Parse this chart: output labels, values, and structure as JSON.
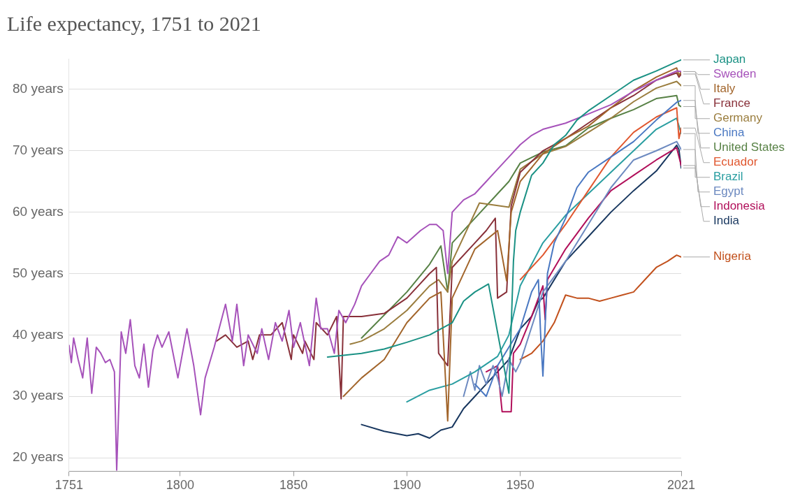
{
  "chart_data": {
    "type": "line",
    "title": "Life expectancy, 1751 to 2021",
    "xlim": [
      1751,
      2021
    ],
    "ylim": [
      17.8,
      85
    ],
    "xticks": [
      1751,
      1800,
      1850,
      1900,
      1950,
      2021
    ],
    "yticks": [
      {
        "value": 20,
        "label": "20 years"
      },
      {
        "value": 30,
        "label": "30 years"
      },
      {
        "value": 40,
        "label": "40 years"
      },
      {
        "value": 50,
        "label": "50 years"
      },
      {
        "value": 60,
        "label": "60 years"
      },
      {
        "value": 70,
        "label": "70 years"
      },
      {
        "value": 80,
        "label": "80 years"
      }
    ],
    "grid": "y",
    "legend": "right",
    "marker": "none",
    "line_style": "solid",
    "series": [
      {
        "name": "Japan",
        "color": "#1a9184",
        "x": [
          1865,
          1880,
          1890,
          1900,
          1910,
          1915,
          1920,
          1925,
          1930,
          1936,
          1945,
          1947,
          1948,
          1950,
          1955,
          1960,
          1965,
          1970,
          1975,
          1980,
          1990,
          2000,
          2010,
          2019,
          2021
        ],
        "values": [
          36.4,
          37,
          37.7,
          38.8,
          40,
          41,
          42,
          45.5,
          47,
          48.3,
          30.5,
          52,
          57,
          60,
          66,
          68,
          71,
          72.5,
          75,
          76.5,
          79,
          81.5,
          83,
          84.5,
          84.8
        ]
      },
      {
        "name": "Sweden",
        "color": "#a652ba",
        "x": [
          1751,
          1752,
          1753,
          1755,
          1757,
          1759,
          1761,
          1763,
          1765,
          1767,
          1769,
          1771,
          1772,
          1774,
          1776,
          1778,
          1780,
          1782,
          1784,
          1786,
          1788,
          1790,
          1792,
          1795,
          1799,
          1803,
          1806,
          1809,
          1811,
          1815,
          1820,
          1823,
          1825,
          1828,
          1830,
          1834,
          1836,
          1839,
          1842,
          1845,
          1848,
          1850,
          1853,
          1857,
          1860,
          1862,
          1865,
          1868,
          1870,
          1873,
          1877,
          1880,
          1884,
          1888,
          1892,
          1896,
          1900,
          1903,
          1906,
          1910,
          1913,
          1916,
          1918,
          1920,
          1925,
          1930,
          1935,
          1940,
          1945,
          1950,
          1955,
          1960,
          1970,
          1980,
          1990,
          2000,
          2010,
          2019,
          2021
        ],
        "values": [
          38.3,
          35.5,
          39.5,
          36,
          33,
          39.5,
          30.5,
          38,
          37,
          35.5,
          36,
          34,
          18,
          40.5,
          37,
          42.5,
          35,
          33,
          38.5,
          31.5,
          37.5,
          40,
          38,
          40.5,
          33,
          41,
          35,
          27,
          33,
          38,
          45,
          39,
          45,
          35,
          40,
          37,
          41,
          36,
          42,
          39,
          44,
          38,
          42,
          35,
          46,
          41,
          41,
          37,
          44,
          42,
          45,
          48,
          50,
          52,
          53,
          56,
          55,
          56,
          57,
          58,
          58,
          57,
          50,
          60,
          62,
          63,
          65,
          67,
          69,
          71,
          72.5,
          73.5,
          74.5,
          76,
          77.5,
          79.7,
          81.5,
          83,
          82.9
        ]
      },
      {
        "name": "Italy",
        "color": "#a2652b",
        "x": [
          1872,
          1880,
          1890,
          1900,
          1910,
          1915,
          1918,
          1920,
          1930,
          1940,
          1944,
          1946,
          1950,
          1960,
          1970,
          1980,
          1990,
          2000,
          2010,
          2019,
          2020,
          2021
        ],
        "values": [
          30,
          33,
          36,
          42,
          46,
          47,
          26,
          46,
          54,
          57,
          48.8,
          60,
          65,
          69.5,
          72,
          74,
          77,
          79.8,
          82,
          83.5,
          82.3,
          82.9
        ]
      },
      {
        "name": "France",
        "color": "#883039",
        "x": [
          1816,
          1820,
          1825,
          1830,
          1832,
          1835,
          1840,
          1845,
          1849,
          1850,
          1854,
          1855,
          1859,
          1860,
          1865,
          1869,
          1870,
          1871,
          1872,
          1880,
          1890,
          1900,
          1905,
          1910,
          1913,
          1914,
          1918,
          1920,
          1930,
          1935,
          1939,
          1940,
          1944,
          1946,
          1950,
          1960,
          1970,
          1980,
          1990,
          2000,
          2010,
          2019,
          2020,
          2021
        ],
        "values": [
          39,
          40,
          38,
          39,
          36,
          40,
          40,
          42,
          36,
          40,
          37,
          39,
          36,
          42,
          40,
          43,
          36,
          29.6,
          43,
          43,
          43.5,
          46,
          48,
          50,
          51,
          37,
          35,
          51,
          55,
          57,
          59,
          46,
          47,
          61,
          66.5,
          70,
          72,
          74.5,
          77,
          79,
          81.5,
          82.7,
          82,
          82.5
        ]
      },
      {
        "name": "Germany",
        "color": "#9a7d3e",
        "x": [
          1875,
          1880,
          1890,
          1900,
          1910,
          1914,
          1918,
          1920,
          1932,
          1945,
          1950,
          1960,
          1970,
          1980,
          1990,
          2000,
          2010,
          2019,
          2021
        ],
        "values": [
          38.5,
          39,
          41,
          44,
          48,
          49,
          47,
          52,
          61.5,
          60.8,
          67,
          69.5,
          70.7,
          73,
          75.3,
          78,
          80.2,
          81.3,
          80.6
        ]
      },
      {
        "name": "China",
        "color": "#4a78c2",
        "x": [
          1930,
          1935,
          1940,
          1950,
          1955,
          1958,
          1959,
          1960,
          1962,
          1965,
          1970,
          1975,
          1980,
          1990,
          2000,
          2010,
          2019,
          2021
        ],
        "values": [
          32,
          30,
          35,
          41,
          47,
          49,
          40,
          33.3,
          50,
          55,
          59,
          64,
          66.5,
          69,
          71.5,
          75,
          77.9,
          78.2
        ]
      },
      {
        "name": "United States",
        "color": "#578145",
        "x": [
          1880,
          1900,
          1910,
          1915,
          1918,
          1920,
          1930,
          1940,
          1945,
          1950,
          1960,
          1970,
          1980,
          1990,
          2000,
          2010,
          2019,
          2020,
          2021
        ],
        "values": [
          39.5,
          47,
          51.5,
          54.5,
          47,
          55,
          59,
          63,
          65,
          68,
          69.8,
          70.8,
          73.7,
          75.3,
          76.7,
          78.5,
          79,
          77.4,
          77.2
        ]
      },
      {
        "name": "Ecuador",
        "color": "#e0572f",
        "x": [
          1950,
          1960,
          1970,
          1980,
          1990,
          2000,
          2010,
          2019,
          2020,
          2021
        ],
        "values": [
          49,
          53,
          58,
          63.5,
          69,
          73,
          75.5,
          77,
          72,
          73.7
        ]
      },
      {
        "name": "Brazil",
        "color": "#2a9ea1",
        "x": [
          1900,
          1910,
          1920,
          1930,
          1940,
          1945,
          1950,
          1960,
          1970,
          1980,
          1990,
          2000,
          2010,
          2019,
          2021
        ],
        "values": [
          29.1,
          31,
          32,
          34,
          36.5,
          40,
          48,
          55,
          59.5,
          63,
          66.5,
          70,
          73.5,
          75.3,
          72.8
        ]
      },
      {
        "name": "Egypt",
        "color": "#6d8ac0",
        "x": [
          1925,
          1928,
          1930,
          1932,
          1935,
          1938,
          1940,
          1942,
          1945,
          1948,
          1950,
          1960,
          1970,
          1980,
          1990,
          2000,
          2010,
          2019,
          2021
        ],
        "values": [
          30,
          34,
          31,
          35,
          32,
          35,
          33,
          30,
          36,
          34,
          35.5,
          47,
          52,
          58,
          64,
          68.5,
          70,
          71.5,
          70.2
        ]
      },
      {
        "name": "Indonesia",
        "color": "#b10f5a",
        "x": [
          1935,
          1940,
          1942,
          1946,
          1947,
          1950,
          1955,
          1960,
          1961,
          1962,
          1970,
          1980,
          1990,
          2000,
          2010,
          2019,
          2021
        ],
        "values": [
          34,
          35,
          27.5,
          27.5,
          37,
          38.5,
          43,
          48,
          42.5,
          49,
          54,
          59,
          63.5,
          66,
          68.5,
          70.5,
          67.6
        ]
      },
      {
        "name": "India",
        "color": "#18375f",
        "x": [
          1880,
          1890,
          1900,
          1905,
          1910,
          1915,
          1920,
          1925,
          1930,
          1935,
          1940,
          1945,
          1950,
          1955,
          1958,
          1960,
          1970,
          1980,
          1990,
          2000,
          2010,
          2019,
          2020,
          2021
        ],
        "values": [
          25.4,
          24.3,
          23.6,
          23.9,
          23.2,
          24.5,
          25,
          28,
          30,
          32,
          34,
          36,
          41,
          43,
          45.5,
          46,
          52,
          56,
          60,
          63.5,
          66.7,
          70.9,
          70.2,
          67.2
        ]
      },
      {
        "name": "Nigeria",
        "color": "#c2511d",
        "x": [
          1950,
          1955,
          1960,
          1965,
          1970,
          1975,
          1980,
          1985,
          1990,
          1995,
          2000,
          2005,
          2010,
          2015,
          2019,
          2021
        ],
        "values": [
          36,
          37,
          39,
          42,
          46.5,
          46,
          46,
          45.5,
          46,
          46.5,
          47,
          49,
          51,
          52,
          53,
          52.7
        ]
      }
    ]
  }
}
